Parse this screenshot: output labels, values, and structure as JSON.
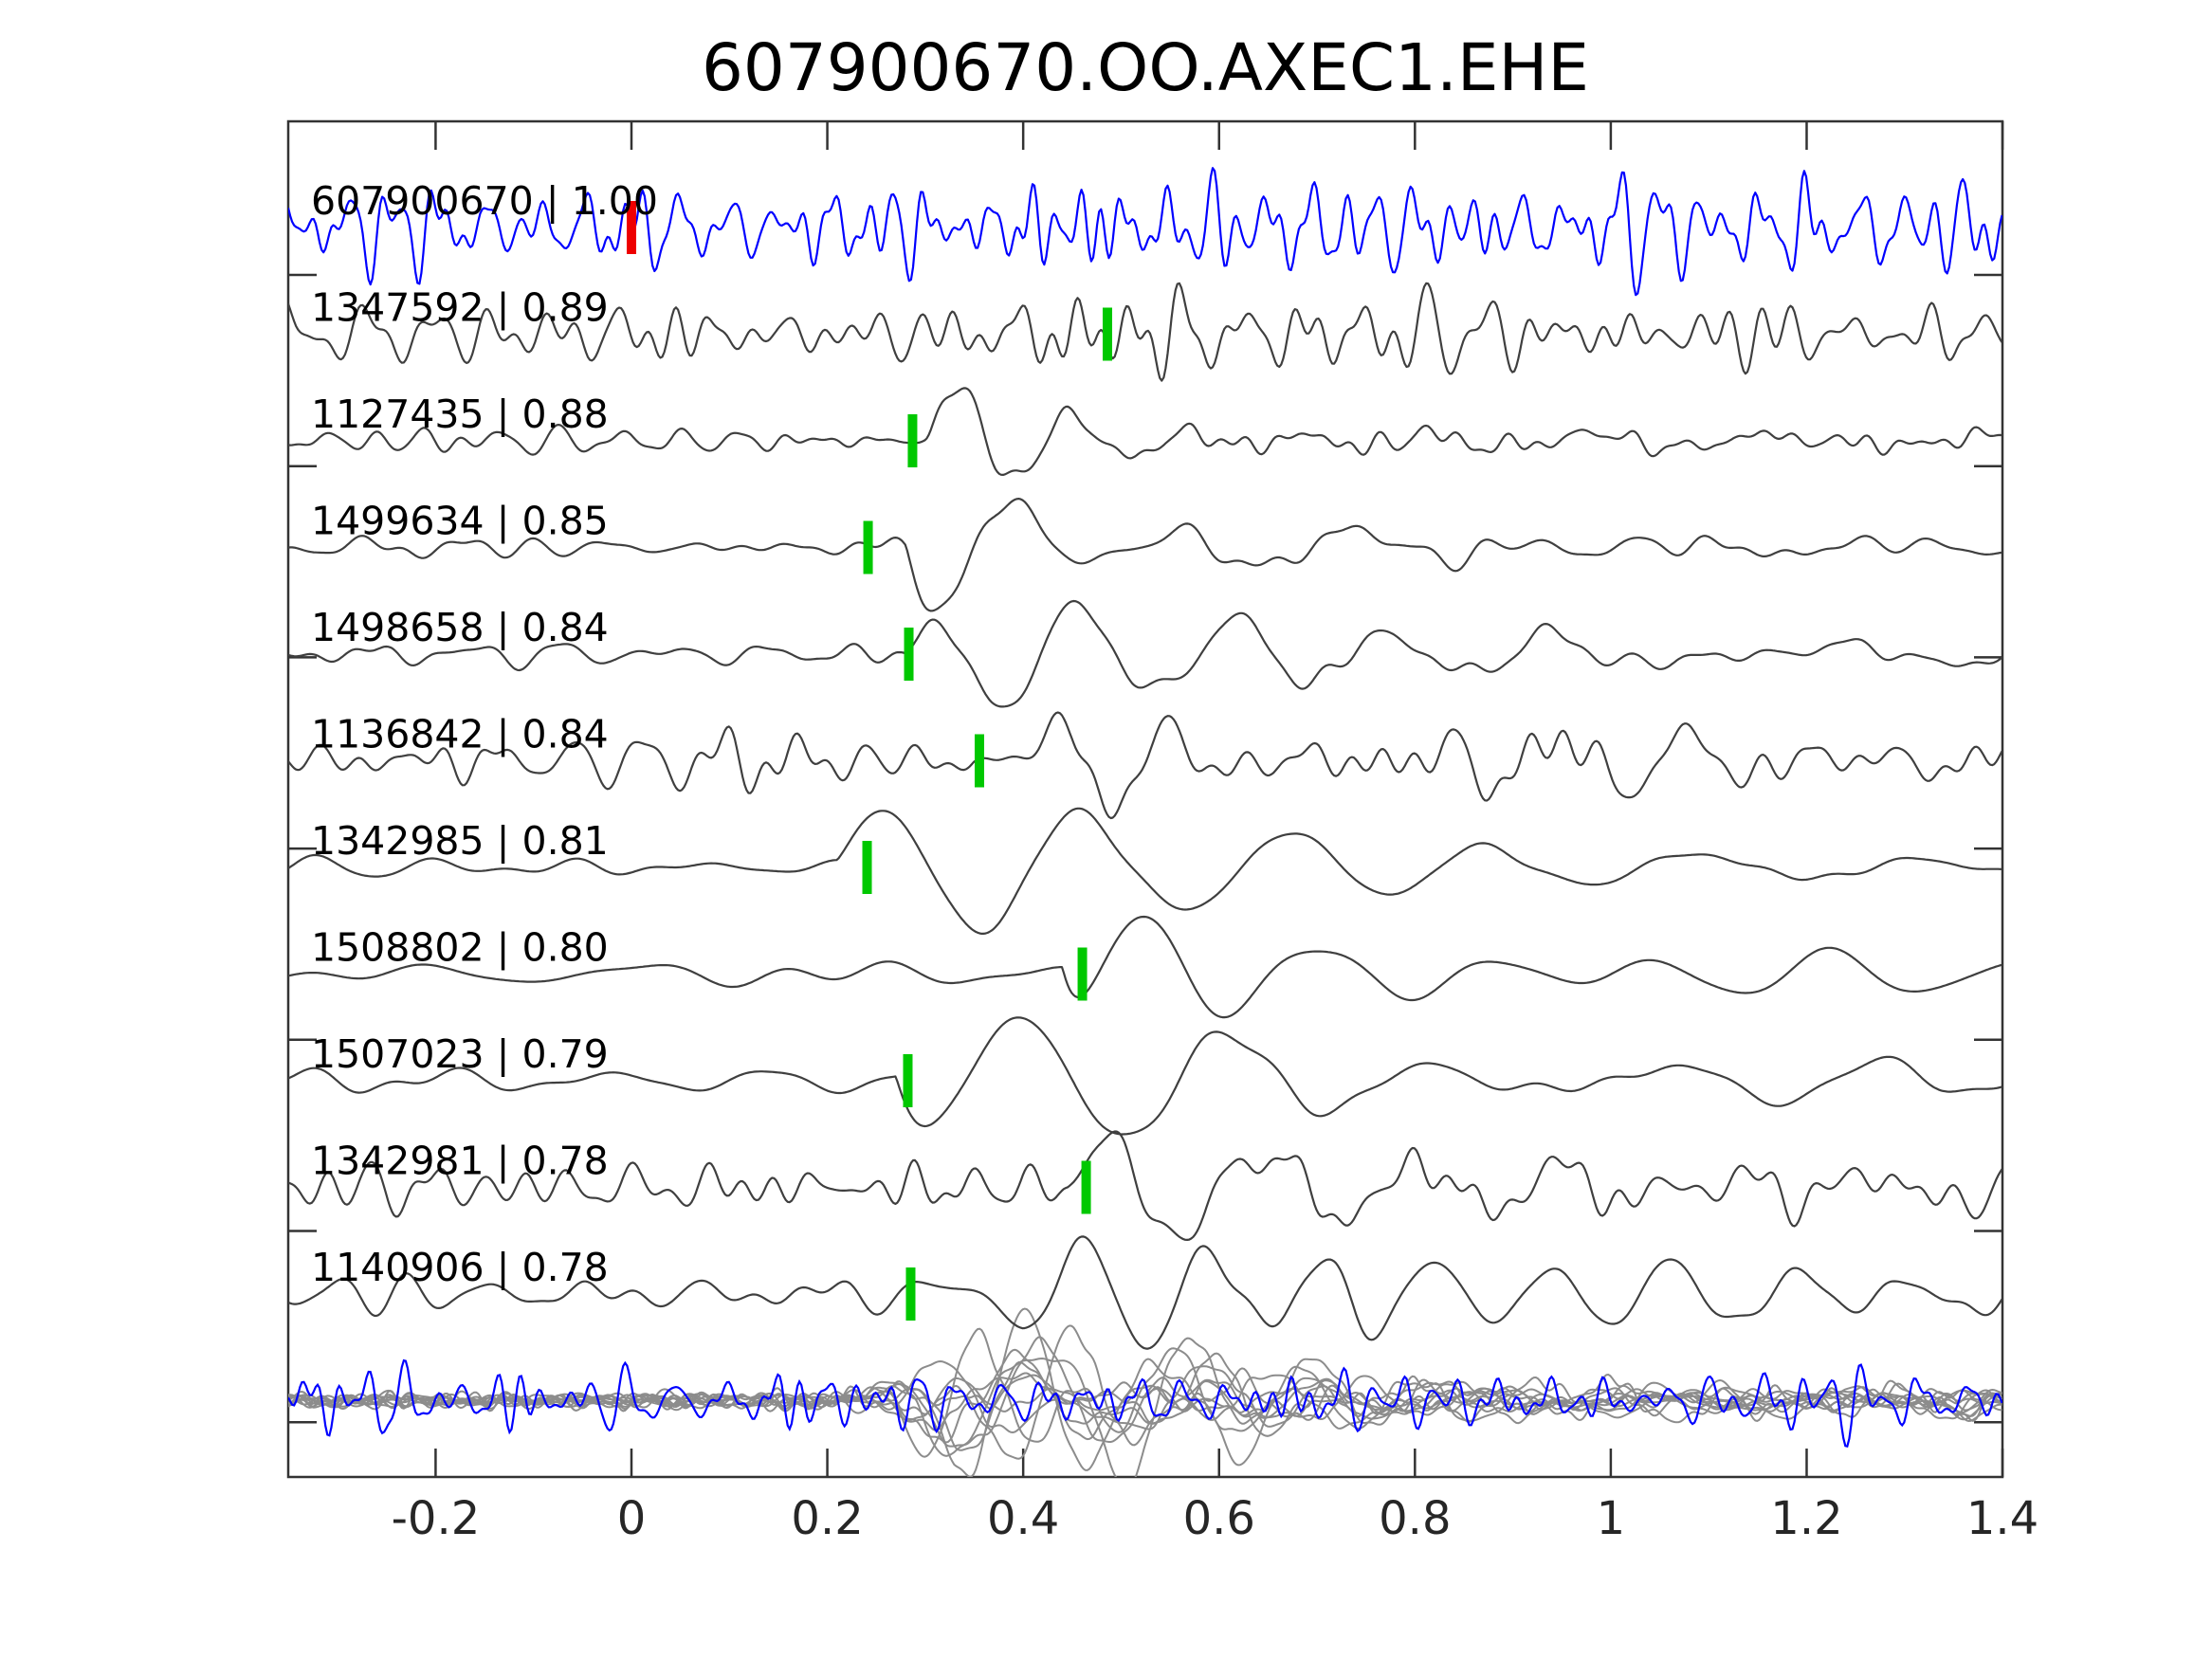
{
  "chart_data": {
    "type": "line",
    "title": "607900670.OO.AXEC1.EHE",
    "x_tick_values": [
      -0.2,
      0,
      0.2,
      0.4,
      0.6,
      0.8,
      1,
      1.2,
      1.4
    ],
    "x_tick_labels": [
      "-0.2",
      "0",
      "0.2",
      "0.4",
      "0.6",
      "0.8",
      "1",
      "1.2",
      "1.4"
    ],
    "xlim": [
      -0.3505,
      1.4
    ],
    "colors": {
      "template": "#0000ff",
      "match": "#3f3f3f",
      "overlay_gray": "#8c8c8c",
      "pick_green": "#00c800",
      "pick_red": "#ee0000",
      "axis": "#333333"
    },
    "traces": [
      {
        "label": "607900670 | 1.00",
        "id": "607900670",
        "corr": 1.0,
        "color": "#0000ff",
        "pick": {
          "t": 0.0,
          "color": "#ee0000"
        },
        "synth": {
          "layers": [
            {
              "type": "noise",
              "seed": 11,
              "f": [
                18,
                62
              ],
              "amp": 20,
              "env": [
                [
                  -0.36,
                  1
                ],
                [
                  1.4,
                  1
                ]
              ]
            }
          ]
        }
      },
      {
        "label": "1347592 | 0.89",
        "id": "1347592",
        "corr": 0.89,
        "color": "#3f3f3f",
        "pick": {
          "t": 0.486,
          "color": "#00c800"
        },
        "synth": {
          "layers": [
            {
              "type": "noise",
              "seed": 22,
              "f": [
                12,
                42
              ],
              "amp": 16,
              "env": [
                [
                  -0.36,
                  1
                ],
                [
                  0.35,
                  1
                ],
                [
                  0.5,
                  1.45
                ],
                [
                  0.8,
                  1.4
                ],
                [
                  1.0,
                  1.1
                ],
                [
                  1.4,
                  1
                ]
              ]
            }
          ]
        }
      },
      {
        "label": "1127435 | 0.88",
        "id": "1127435",
        "corr": 0.88,
        "color": "#3f3f3f",
        "pick": {
          "t": 0.287,
          "color": "#00c800"
        },
        "synth": {
          "layers": [
            {
              "type": "noise",
              "seed": 33,
              "f": [
                12,
                40
              ],
              "amp": 6,
              "env": [
                [
                  -0.36,
                  1
                ],
                [
                  1.4,
                  1
                ]
              ]
            },
            {
              "type": "wavelet",
              "t0": 0.3,
              "f": 8,
              "phase": 0,
              "ramp": 0.02,
              "tau": 0.1,
              "amp": 110
            },
            {
              "type": "noise",
              "seed": 37,
              "f": [
                4,
                12
              ],
              "amp": 7,
              "env": [
                [
                  0.3,
                  0
                ],
                [
                  0.45,
                  1
                ],
                [
                  0.8,
                  0.6
                ],
                [
                  1.4,
                  0.5
                ]
              ]
            }
          ]
        }
      },
      {
        "label": "1499634 | 0.85",
        "id": "1499634",
        "corr": 0.85,
        "color": "#3f3f3f",
        "pick": {
          "t": 0.2416,
          "color": "#00c800"
        },
        "synth": {
          "layers": [
            {
              "type": "noise",
              "seed": 44,
              "f": [
                8,
                26
              ],
              "amp": 5,
              "env": [
                [
                  -0.36,
                  1
                ],
                [
                  1.4,
                  1
                ]
              ]
            },
            {
              "type": "wavelet",
              "t0": 0.28,
              "f": 5.8,
              "phase": -2.6,
              "ramp": 0.025,
              "tau": 0.17,
              "amp": 105
            },
            {
              "type": "noise",
              "seed": 45,
              "f": [
                3,
                9
              ],
              "amp": 7,
              "env": [
                [
                  0.3,
                  0
                ],
                [
                  0.5,
                  1
                ],
                [
                  1.4,
                  0.6
                ]
              ]
            }
          ]
        }
      },
      {
        "label": "1498658 | 0.84",
        "id": "1498658",
        "corr": 0.84,
        "color": "#3f3f3f",
        "pick": {
          "t": 0.2832,
          "color": "#00c800"
        },
        "synth": {
          "layers": [
            {
              "type": "noise",
              "seed": 55,
              "f": [
                8,
                28
              ],
              "amp": 5.5,
              "env": [
                [
                  -0.36,
                  1
                ],
                [
                  1.4,
                  1
                ]
              ]
            },
            {
              "type": "wavelet",
              "t0": 0.28,
              "f": 6.3,
              "phase": 0.8,
              "ramp": 0.08,
              "tau": 0.25,
              "amp": 125
            },
            {
              "type": "noise",
              "seed": 56,
              "f": [
                3,
                9
              ],
              "amp": 8,
              "env": [
                [
                  0.3,
                  0
                ],
                [
                  0.55,
                  1
                ],
                [
                  1.1,
                  0.8
                ],
                [
                  1.4,
                  0.55
                ]
              ]
            }
          ]
        }
      },
      {
        "label": "1136842 | 0.84",
        "id": "1136842",
        "corr": 0.84,
        "color": "#3f3f3f",
        "pick": {
          "t": 0.3553,
          "color": "#00c800"
        },
        "synth": {
          "layers": [
            {
              "type": "noise",
              "seed": 66,
              "f": [
                10,
                36
              ],
              "amp": 11,
              "env": [
                [
                  -0.36,
                  1
                ],
                [
                  1.4,
                  1
                ]
              ]
            },
            {
              "type": "noise",
              "seed": 67,
              "f": [
                6,
                13
              ],
              "amp": 20,
              "env": [
                [
                  0.35,
                  0
                ],
                [
                  0.45,
                  2.1
                ],
                [
                  0.7,
                  1.5
                ],
                [
                  0.95,
                  1.4
                ],
                [
                  1.2,
                  0.9
                ],
                [
                  1.4,
                  0.8
                ]
              ]
            }
          ]
        }
      },
      {
        "label": "1342985 | 0.81",
        "id": "1342985",
        "corr": 0.81,
        "color": "#3f3f3f",
        "pick": {
          "t": 0.2406,
          "color": "#00c800"
        },
        "synth": {
          "layers": [
            {
              "type": "noise",
              "seed": 77,
              "f": [
                6,
                18
              ],
              "amp": 5.5,
              "env": [
                [
                  -0.36,
                  1
                ],
                [
                  0.22,
                  1
                ],
                [
                  0.6,
                  0.5
                ],
                [
                  1.4,
                  0.4
                ]
              ]
            },
            {
              "type": "wavelet",
              "t0": 0.21,
              "f": 4.7,
              "phase": 0.39,
              "ramp": 0.03,
              "tau": 0.4,
              "amp": 95
            },
            {
              "type": "noise",
              "seed": 78,
              "f": [
                3,
                8
              ],
              "amp": 6,
              "env": [
                [
                  0.3,
                  0
                ],
                [
                  0.6,
                  1
                ],
                [
                  1.4,
                  0.7
                ]
              ]
            }
          ]
        }
      },
      {
        "label": "1508802 | 0.80",
        "id": "1508802",
        "corr": 0.8,
        "color": "#3f3f3f",
        "pick": {
          "t": 0.4604,
          "color": "#00c800"
        },
        "synth": {
          "layers": [
            {
              "type": "noise",
              "seed": 88,
              "f": [
                4,
                11
              ],
              "amp": 6.5,
              "env": [
                [
                  -0.36,
                  1
                ],
                [
                  1.4,
                  1
                ]
              ]
            },
            {
              "type": "wavelet",
              "t0": 0.44,
              "f": 5.5,
              "phase": -1.2,
              "ramp": 0.02,
              "tau": 0.22,
              "amp": 95
            },
            {
              "type": "noise",
              "seed": 89,
              "f": [
                3,
                8
              ],
              "amp": 9,
              "env": [
                [
                  0.5,
                  0
                ],
                [
                  0.75,
                  1
                ],
                [
                  1.4,
                  0.8
                ]
              ]
            }
          ]
        }
      },
      {
        "label": "1507023 | 0.79",
        "id": "1507023",
        "corr": 0.79,
        "color": "#3f3f3f",
        "pick": {
          "t": 0.2822,
          "color": "#00c800"
        },
        "synth": {
          "layers": [
            {
              "type": "noise",
              "seed": 99,
              "f": [
                6,
                16
              ],
              "amp": 5.5,
              "env": [
                [
                  -0.36,
                  1
                ],
                [
                  1.4,
                  1
                ]
              ]
            },
            {
              "type": "wavelet",
              "t0": 0.27,
              "f": 4.6,
              "phase": -2.0,
              "ramp": 0.025,
              "tau": 0.35,
              "amp": 100
            },
            {
              "type": "noise",
              "seed": 100,
              "f": [
                3,
                8
              ],
              "amp": 7,
              "env": [
                [
                  0.35,
                  0
                ],
                [
                  0.65,
                  1
                ],
                [
                  1.4,
                  0.7
                ]
              ]
            }
          ]
        }
      },
      {
        "label": "1342981 | 0.78",
        "id": "1342981",
        "corr": 0.78,
        "color": "#3f3f3f",
        "pick": {
          "t": 0.4643,
          "color": "#00c800"
        },
        "synth": {
          "layers": [
            {
              "type": "noise",
              "seed": 110,
              "f": [
                10,
                36
              ],
              "amp": 12,
              "env": [
                [
                  -0.36,
                  1
                ],
                [
                  1.4,
                  1
                ]
              ]
            },
            {
              "type": "wavelet",
              "t0": 0.445,
              "f": 6.25,
              "phase": 0.2,
              "ramp": 0.03,
              "tau": 0.3,
              "amp": 80
            },
            {
              "type": "noise",
              "seed": 111,
              "f": [
                4,
                10
              ],
              "amp": 10,
              "env": [
                [
                  0.5,
                  0
                ],
                [
                  0.75,
                  1.2
                ],
                [
                  1.1,
                  1.0
                ],
                [
                  1.4,
                  0.8
                ]
              ]
            }
          ]
        }
      },
      {
        "label": "1140906 | 0.78",
        "id": "1140906",
        "corr": 0.78,
        "color": "#3f3f3f",
        "pick": {
          "t": 0.2851,
          "color": "#00c800"
        },
        "synth": {
          "layers": [
            {
              "type": "noise",
              "seed": 121,
              "f": [
                8,
                24
              ],
              "amp": 8,
              "env": [
                [
                  -0.36,
                  1
                ],
                [
                  1.4,
                  0.9
                ]
              ]
            },
            {
              "type": "noise",
              "seed": 123,
              "f": [
                5,
                9
              ],
              "amp": 18,
              "env": [
                [
                  0.29,
                  0
                ],
                [
                  0.4,
                  1.3
                ],
                [
                  0.6,
                  1.6
                ],
                [
                  0.9,
                  1.4
                ],
                [
                  1.1,
                  0.8
                ],
                [
                  1.4,
                  0.55
                ]
              ]
            }
          ]
        }
      }
    ],
    "overlay": {
      "gray_count": 11,
      "gray_color": "#8c8c8c",
      "gray_synth": {
        "bg": {
          "f": [
            14,
            50
          ],
          "amp": 3.6
        },
        "burst": {
          "f": [
            4.5,
            11
          ],
          "amp": 18,
          "env": [
            [
              0.22,
              0.05
            ],
            [
              0.33,
              1.8
            ],
            [
              0.6,
              1.4
            ],
            [
              0.85,
              0.5
            ],
            [
              1.1,
              0.4
            ],
            [
              1.4,
              0.35
            ]
          ]
        }
      },
      "blue_synth": {
        "seed": 300,
        "f": [
          18,
          60
        ],
        "amp": 14,
        "env": [
          [
            -0.36,
            1.3
          ],
          [
            -0.1,
            1.0
          ],
          [
            0.0,
            1.2
          ],
          [
            0.3,
            0.95
          ],
          [
            0.8,
            1.15
          ],
          [
            1.1,
            1.0
          ],
          [
            1.3,
            1.25
          ],
          [
            1.4,
            1.1
          ]
        ]
      },
      "blue_color": "#0000ff"
    }
  }
}
